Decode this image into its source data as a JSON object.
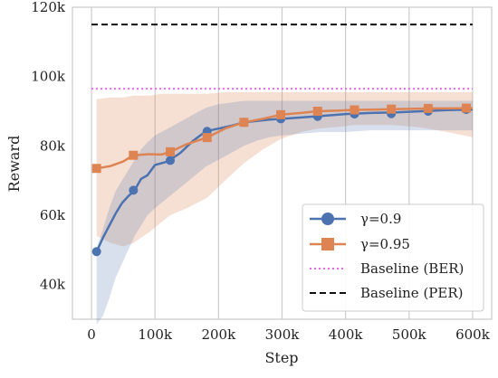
{
  "chart_data": {
    "type": "line",
    "xlabel": "Step",
    "ylabel": "Reward",
    "xlim": [
      -30000,
      630000
    ],
    "ylim": [
      30000,
      120000
    ],
    "xticks": [
      0,
      100000,
      200000,
      300000,
      400000,
      500000,
      600000
    ],
    "xtick_labels": [
      "0",
      "100k",
      "200k",
      "300k",
      "400k",
      "500k",
      "600k"
    ],
    "yticks": [
      40000,
      60000,
      80000,
      100000,
      120000
    ],
    "ytick_labels": [
      "40k",
      "60k",
      "80k",
      "100k",
      "120k"
    ],
    "grid": "vertical",
    "legend_position": "lower-right",
    "series": [
      {
        "name": "γ=0.9",
        "color": "#4c72b0",
        "marker": "circle",
        "x": [
          8000,
          18000,
          28000,
          38000,
          48000,
          58000,
          68000,
          78000,
          88000,
          100000,
          120000,
          140000,
          160000,
          180000,
          200000,
          220000,
          240000,
          260000,
          280000,
          300000,
          330000,
          360000,
          400000,
          440000,
          480000,
          520000,
          560000,
          600000
        ],
        "values": [
          49500,
          53500,
          57000,
          60500,
          63500,
          65500,
          67200,
          70500,
          71500,
          74500,
          75500,
          78000,
          81500,
          84200,
          85000,
          85800,
          86800,
          87200,
          87600,
          87800,
          88200,
          88600,
          89200,
          89500,
          89700,
          90000,
          90300,
          90500
        ],
        "upper": [
          50500,
          56000,
          62000,
          67000,
          70000,
          73000,
          76000,
          79000,
          81000,
          83000,
          85000,
          87000,
          89000,
          91000,
          92000,
          92500,
          93000,
          93000,
          93000,
          93000,
          93000,
          93000,
          93000,
          93000,
          93000,
          93000,
          93000,
          93000
        ],
        "lower": [
          28500,
          31000,
          36000,
          42000,
          46000,
          50000,
          54000,
          57000,
          60000,
          62000,
          65000,
          68000,
          71000,
          74000,
          76000,
          78000,
          80000,
          81500,
          82500,
          83000,
          83500,
          84000,
          84000,
          84500,
          84500,
          84500,
          84500,
          84500
        ],
        "marker_x": [
          8000,
          66000,
          124000,
          182000,
          240000,
          298000,
          356000,
          414000,
          472000,
          530000,
          590000
        ],
        "marker_values": [
          49500,
          67200,
          75800,
          84200,
          86800,
          87800,
          88500,
          89200,
          89300,
          90000,
          90500
        ]
      },
      {
        "name": "γ=0.95",
        "color": "#dd8452",
        "marker": "square",
        "x": [
          8000,
          30000,
          50000,
          66000,
          90000,
          110000,
          124000,
          150000,
          182000,
          210000,
          240000,
          270000,
          298000,
          330000,
          356000,
          390000,
          414000,
          450000,
          472000,
          510000,
          530000,
          560000,
          600000
        ],
        "values": [
          73500,
          74200,
          75500,
          77300,
          77600,
          77500,
          78300,
          80500,
          82400,
          85000,
          86800,
          87800,
          89000,
          89500,
          90000,
          90200,
          90400,
          90500,
          90600,
          90700,
          90800,
          90800,
          90900
        ],
        "upper": [
          93500,
          94000,
          94000,
          94500,
          94500,
          95000,
          95000,
          95000,
          95000,
          95500,
          95500,
          95500,
          95500,
          95500,
          95500,
          95500,
          95500,
          95500,
          95500,
          95500,
          95500,
          95500,
          95500
        ],
        "lower": [
          54000,
          52000,
          51000,
          52000,
          55000,
          58000,
          60000,
          62000,
          65000,
          70000,
          75000,
          79000,
          82000,
          84000,
          85000,
          85500,
          86000,
          86000,
          86000,
          85500,
          85000,
          84000,
          82500
        ],
        "marker_x": [
          8000,
          66000,
          124000,
          182000,
          240000,
          298000,
          356000,
          414000,
          472000,
          530000,
          590000
        ],
        "marker_values": [
          73500,
          77300,
          78300,
          82400,
          86800,
          89000,
          90000,
          90400,
          90600,
          90800,
          90900
        ]
      }
    ],
    "baselines": [
      {
        "name": "Baseline (BER)",
        "value": 96500,
        "color": "#ee66ee",
        "style": "dotted"
      },
      {
        "name": "Baseline (PER)",
        "value": 115000,
        "color": "#111111",
        "style": "dashed"
      }
    ]
  }
}
